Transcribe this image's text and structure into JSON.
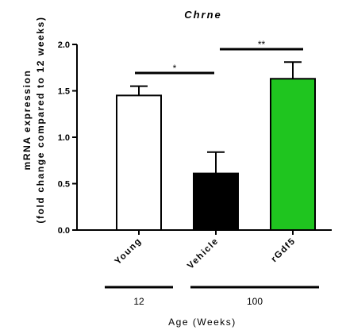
{
  "chart_data": {
    "type": "bar",
    "title": "Chrne",
    "ylabel_line1": "mRNA expression",
    "ylabel_line2": "(fold change compared to 12 weeks)",
    "xlabel": "Age (Weeks)",
    "categories": [
      "Young",
      "Vehicle",
      "rGdf5"
    ],
    "values": [
      1.45,
      0.61,
      1.63
    ],
    "errors": [
      0.1,
      0.23,
      0.18
    ],
    "bar_colors": [
      "#ffffff",
      "#000000",
      "#1fc51f"
    ],
    "ylim": [
      0,
      2.0
    ],
    "yticks": [
      "0.0",
      "0.5",
      "1.0",
      "1.5",
      "2.0"
    ],
    "significance": [
      {
        "from": 0,
        "to": 1,
        "label": "*"
      },
      {
        "from": 1,
        "to": 2,
        "label": "**"
      }
    ],
    "groups": [
      {
        "label": "12",
        "from": 0,
        "to": 0
      },
      {
        "label": "100",
        "from": 1,
        "to": 2
      }
    ],
    "grid": false
  }
}
